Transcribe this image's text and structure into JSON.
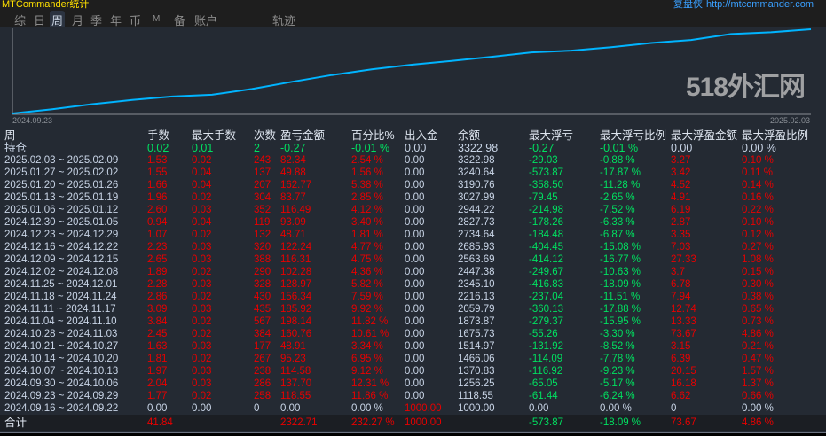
{
  "app": {
    "title": "MTCommander统计",
    "brand": "复盘侠",
    "url": "http://mtcommander.com"
  },
  "tabs": [
    {
      "label": "综"
    },
    {
      "label": "日"
    },
    {
      "label": "周",
      "active": true
    },
    {
      "label": "月"
    },
    {
      "label": "季"
    },
    {
      "label": "年"
    },
    {
      "label": "币"
    },
    {
      "label": "M"
    },
    {
      "label": "备"
    },
    {
      "label": "账户"
    },
    {
      "label": "轨迹"
    }
  ],
  "colors": {
    "line": "#00b4ff",
    "red": "#e80000",
    "green": "#00e060",
    "text": "#c8d4e6"
  },
  "chart_data": {
    "type": "line",
    "x_start": "2024.09.23",
    "x_end": "2025.02.03",
    "series": [
      {
        "name": "余额",
        "values": [
          1000,
          1118.55,
          1256.25,
          1370.83,
          1466.06,
          1514.97,
          1675.73,
          1873.87,
          2059.79,
          2216.13,
          2345.1,
          2447.38,
          2563.69,
          2685.93,
          2734.64,
          2827.73,
          2944.22,
          3027.99,
          3190.76,
          3240.64,
          3322.98
        ]
      }
    ]
  },
  "table": {
    "headers": [
      "周",
      "手数",
      "最大手数",
      "次数",
      "盈亏金额",
      "百分比%",
      "出入金",
      "余额",
      "最大浮亏",
      "最大浮亏比例",
      "最大浮盈金额",
      "最大浮盈比例"
    ],
    "rows": [
      {
        "c": "wgggggwwggww",
        "v": [
          "持仓",
          "0.02",
          "0.01",
          "2",
          "-0.27",
          "-0.01 %",
          "0.00",
          "3322.98",
          "-0.27",
          "-0.01 %",
          "0.00",
          "0.00 %"
        ]
      },
      {
        "c": "wrrrrrwwggrr",
        "v": [
          "2025.02.03 ~ 2025.02.09",
          "1.53",
          "0.02",
          "243",
          "82.34",
          "2.54 %",
          "0.00",
          "3322.98",
          "-29.03",
          "-0.88 %",
          "3.27",
          "0.10 %"
        ]
      },
      {
        "c": "wrrrrrwwggrr",
        "v": [
          "2025.01.27 ~ 2025.02.02",
          "1.55",
          "0.04",
          "137",
          "49.88",
          "1.56 %",
          "0.00",
          "3240.64",
          "-573.87",
          "-17.87 %",
          "3.42",
          "0.11 %"
        ]
      },
      {
        "c": "wrrrrrwwggrr",
        "v": [
          "2025.01.20 ~ 2025.01.26",
          "1.66",
          "0.04",
          "207",
          "162.77",
          "5.38 %",
          "0.00",
          "3190.76",
          "-358.50",
          "-11.28 %",
          "4.52",
          "0.14 %"
        ]
      },
      {
        "c": "wrrrrrwwggrr",
        "v": [
          "2025.01.13 ~ 2025.01.19",
          "1.96",
          "0.02",
          "304",
          "83.77",
          "2.85 %",
          "0.00",
          "3027.99",
          "-79.45",
          "-2.65 %",
          "4.91",
          "0.16 %"
        ]
      },
      {
        "c": "wrrrrrwwggrr",
        "v": [
          "2025.01.06 ~ 2025.01.12",
          "2.60",
          "0.03",
          "352",
          "116.49",
          "4.12 %",
          "0.00",
          "2944.22",
          "-214.98",
          "-7.52 %",
          "6.19",
          "0.22 %"
        ]
      },
      {
        "c": "wrrrrrwwggrr",
        "v": [
          "2024.12.30 ~ 2025.01.05",
          "0.94",
          "0.04",
          "119",
          "93.09",
          "3.40 %",
          "0.00",
          "2827.73",
          "-178.26",
          "-6.33 %",
          "2.87",
          "0.10 %"
        ]
      },
      {
        "c": "wrrrrrwwggrr",
        "v": [
          "2024.12.23 ~ 2024.12.29",
          "1.07",
          "0.02",
          "132",
          "48.71",
          "1.81 %",
          "0.00",
          "2734.64",
          "-184.48",
          "-6.87 %",
          "3.35",
          "0.12 %"
        ]
      },
      {
        "c": "wrrrrrwwggrr",
        "v": [
          "2024.12.16 ~ 2024.12.22",
          "2.23",
          "0.03",
          "320",
          "122.24",
          "4.77 %",
          "0.00",
          "2685.93",
          "-404.45",
          "-15.08 %",
          "7.03",
          "0.27 %"
        ]
      },
      {
        "c": "wrrrrrwwggrr",
        "v": [
          "2024.12.09 ~ 2024.12.15",
          "2.65",
          "0.03",
          "388",
          "116.31",
          "4.75 %",
          "0.00",
          "2563.69",
          "-414.12",
          "-16.77 %",
          "27.33",
          "1.08 %"
        ]
      },
      {
        "c": "wrrrrrwwggrr",
        "v": [
          "2024.12.02 ~ 2024.12.08",
          "1.89",
          "0.02",
          "290",
          "102.28",
          "4.36 %",
          "0.00",
          "2447.38",
          "-249.67",
          "-10.63 %",
          "3.7",
          "0.15 %"
        ]
      },
      {
        "c": "wrrrrrwwggrr",
        "v": [
          "2024.11.25 ~ 2024.12.01",
          "2.28",
          "0.03",
          "328",
          "128.97",
          "5.82 %",
          "0.00",
          "2345.10",
          "-416.83",
          "-18.09 %",
          "6.78",
          "0.30 %"
        ]
      },
      {
        "c": "wrrrrrwwggrr",
        "v": [
          "2024.11.18 ~ 2024.11.24",
          "2.86",
          "0.02",
          "430",
          "156.34",
          "7.59 %",
          "0.00",
          "2216.13",
          "-237.04",
          "-11.51 %",
          "7.94",
          "0.38 %"
        ]
      },
      {
        "c": "wrrrrrwwggrr",
        "v": [
          "2024.11.11 ~ 2024.11.17",
          "3.09",
          "0.03",
          "435",
          "185.92",
          "9.92 %",
          "0.00",
          "2059.79",
          "-360.13",
          "-17.88 %",
          "12.74",
          "0.65 %"
        ]
      },
      {
        "c": "wrrrrrwwggrr",
        "v": [
          "2024.11.04 ~ 2024.11.10",
          "3.84",
          "0.02",
          "567",
          "198.14",
          "11.82 %",
          "0.00",
          "1873.87",
          "-279.37",
          "-15.95 %",
          "13.33",
          "0.73 %"
        ]
      },
      {
        "c": "wrrrrrwwggrr",
        "v": [
          "2024.10.28 ~ 2024.11.03",
          "2.45",
          "0.02",
          "384",
          "160.76",
          "10.61 %",
          "0.00",
          "1675.73",
          "-55.26",
          "-3.30 %",
          "73.67",
          "4.86 %"
        ]
      },
      {
        "c": "wrrrrrwwggrr",
        "v": [
          "2024.10.21 ~ 2024.10.27",
          "1.63",
          "0.03",
          "177",
          "48.91",
          "3.34 %",
          "0.00",
          "1514.97",
          "-131.92",
          "-8.52 %",
          "3.15",
          "0.21 %"
        ]
      },
      {
        "c": "wrrrrrwwggrr",
        "v": [
          "2024.10.14 ~ 2024.10.20",
          "1.81",
          "0.02",
          "267",
          "95.23",
          "6.95 %",
          "0.00",
          "1466.06",
          "-114.09",
          "-7.78 %",
          "6.39",
          "0.47 %"
        ]
      },
      {
        "c": "wrrrrrwwggrr",
        "v": [
          "2024.10.07 ~ 2024.10.13",
          "1.97",
          "0.03",
          "238",
          "114.58",
          "9.12 %",
          "0.00",
          "1370.83",
          "-116.92",
          "-9.23 %",
          "20.15",
          "1.57 %"
        ]
      },
      {
        "c": "wrrrrrwwggrr",
        "v": [
          "2024.09.30 ~ 2024.10.06",
          "2.04",
          "0.03",
          "286",
          "137.70",
          "12.31 %",
          "0.00",
          "1256.25",
          "-65.05",
          "-5.17 %",
          "16.18",
          "1.37 %"
        ]
      },
      {
        "c": "wrrrrrwwggrr",
        "v": [
          "2024.09.23 ~ 2024.09.29",
          "1.77",
          "0.02",
          "258",
          "118.55",
          "11.86 %",
          "0.00",
          "1118.55",
          "-61.44",
          "-6.24 %",
          "6.62",
          "0.66 %"
        ]
      },
      {
        "c": "wwwwwwrwwwww",
        "v": [
          "2024.09.16 ~ 2024.09.22",
          "0.00",
          "0.00",
          "0",
          "0.00",
          "0.00 %",
          "1000.00",
          "1000.00",
          "0.00",
          "0.00 %",
          "0",
          "0.00 %"
        ]
      }
    ],
    "total": {
      "c": "wrrrrrrwggrr",
      "v": [
        "合计",
        "41.84",
        "",
        "",
        "2322.71",
        "232.27 %",
        "1000.00",
        "",
        "-573.87",
        "-18.09 %",
        "73.67",
        "4.86 %"
      ]
    }
  },
  "watermark": "518外汇网"
}
